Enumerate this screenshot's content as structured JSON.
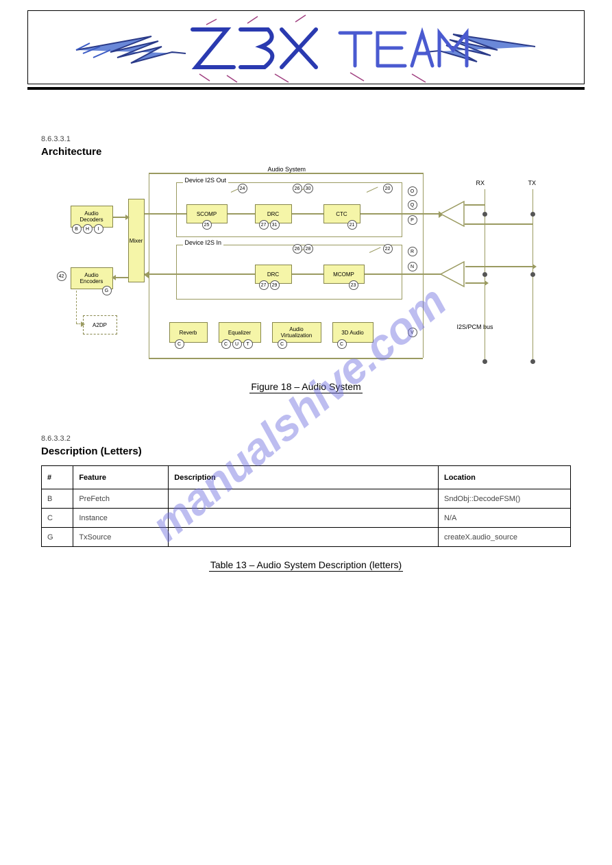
{
  "header": {
    "logo_text": "Z3X Team"
  },
  "section1": {
    "label": "8.6.3.3.1",
    "title": "Architecture"
  },
  "figure18": {
    "caption": "Figure 18 – Audio System",
    "system_title": "Audio System",
    "frame_out": "Device I2S Out",
    "frame_in": "Device I2S In",
    "rx": "RX",
    "tx": "TX",
    "bus": "I2S/PCM bus",
    "blocks": {
      "decoders": "Audio\nDecoders",
      "encoders": "Audio\nEncoders",
      "a2dp": "A2DP",
      "mixer": "Mixer",
      "scomp": "SCOMP",
      "drc": "DRC",
      "ctc": "CTC",
      "mcomp": "MCOMP",
      "reverb": "Reverb",
      "equalizer": "Equalizer",
      "virt": "Audio\nVirtualization",
      "audio3d": "3D Audio"
    },
    "circles": {
      "dec_b": "B",
      "dec_h": "H",
      "dec_i": "I",
      "enc_g": "G",
      "enc_42": "42",
      "scomp_25": "25",
      "out_24": "24",
      "drc_out_27": "27",
      "drc_out_31": "31",
      "out_26": "26",
      "out_30": "30",
      "ctc_21": "21",
      "ctc_sw_20": "20",
      "o1": "O",
      "q": "Q",
      "p": "P",
      "in_26": "26",
      "in_28": "28",
      "in_sw_22": "22",
      "drc_in_27": "27",
      "drc_in_29": "29",
      "mcomp_23": "23",
      "r": "R",
      "n": "N",
      "rev_c": "C",
      "eq_c": "C",
      "eq_u": "U",
      "eq_t": "T",
      "av_c": "C",
      "a3d_c": "C",
      "v": "V"
    },
    "colors": {
      "block_fill": "#f5f5a8",
      "block_border": "#86864a",
      "line": "#9a9a60",
      "bg": "#ffffff"
    }
  },
  "section2": {
    "label": "8.6.3.3.2",
    "title": "Description (Letters)"
  },
  "table13": {
    "caption": "Table 13 – Audio System Description (letters)",
    "columns": [
      "#",
      "Feature",
      "Description",
      "Location"
    ],
    "col_widths": [
      "6%",
      "18%",
      "51%",
      "25%"
    ],
    "rows": [
      [
        "B",
        "PreFetch",
        "",
        "SndObj::DecodeFSM()"
      ],
      [
        "C",
        "Instance",
        "",
        "N/A"
      ],
      [
        "G",
        "TxSource",
        "",
        "createX.audio_source"
      ]
    ]
  },
  "watermark": {
    "text": "manualshive.com",
    "color": "#6f6fe0",
    "opacity": 0.45,
    "rotation_deg": 40,
    "fontsize": 64
  }
}
